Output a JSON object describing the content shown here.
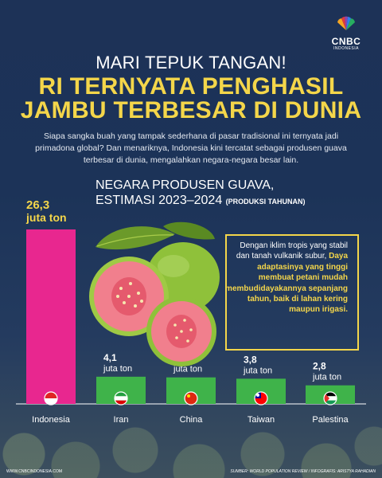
{
  "logo": {
    "brand": "CNBC",
    "sub": "INDONESIA"
  },
  "header": {
    "kicker": "MARI TEPUK TANGAN!",
    "headline_line1": "RI TERNYATA PENGHASIL",
    "headline_line2": "JAMBU TERBESAR DI DUNIA"
  },
  "intro": "Siapa sangka buah yang tampak sederhana di pasar tradisional ini ternyata jadi primadona global? Dan menariknya, Indonesia kini tercatat sebagai produsen guava terbesar di dunia, mengalahkan negara-negara besar lain.",
  "chart_title": {
    "line1": "NEGARA PRODUSEN GUAVA,",
    "line2": "ESTIMASI 2023–2024",
    "line2_small": "(PRODUKSI TAHUNAN)"
  },
  "callout": {
    "part1": "Dengan iklim tropis yang stabil dan tanah vulkanik subur,",
    "part2": "Daya adaptasinya yang tinggi membuat petani mudah membudidayakannya sepanjang tahun, baik di lahan kering maupun irigasi."
  },
  "footer": {
    "website": "WWW.CNBCINDONESIA.COM",
    "credit": "SUMBER: WORLD POPULATION REVIEW / INFOGRAFIS: ARISTYA RAHADIAN"
  },
  "colors": {
    "background": "#1d3257",
    "headline": "#f4d64a",
    "bar_top": "#e8278f",
    "bar_other": "#3fb34a"
  },
  "chart_data": {
    "type": "bar",
    "title": "NEGARA PRODUSEN GUAVA, ESTIMASI 2023–2024 (PRODUKSI TAHUNAN)",
    "xlabel": "",
    "ylabel": "",
    "ylim": [
      0,
      26.3
    ],
    "categories": [
      "Indonesia",
      "Iran",
      "China",
      "Taiwan",
      "Palestina"
    ],
    "values": [
      26.3,
      4.1,
      4,
      3.8,
      2.8
    ],
    "value_labels": [
      "26,3",
      "4,1",
      "4",
      "3,8",
      "2,8"
    ],
    "unit": "juta ton",
    "flag_icons": [
      "flag-indonesia-icon",
      "flag-iran-icon",
      "flag-china-icon",
      "flag-taiwan-icon",
      "flag-palestine-icon"
    ]
  }
}
